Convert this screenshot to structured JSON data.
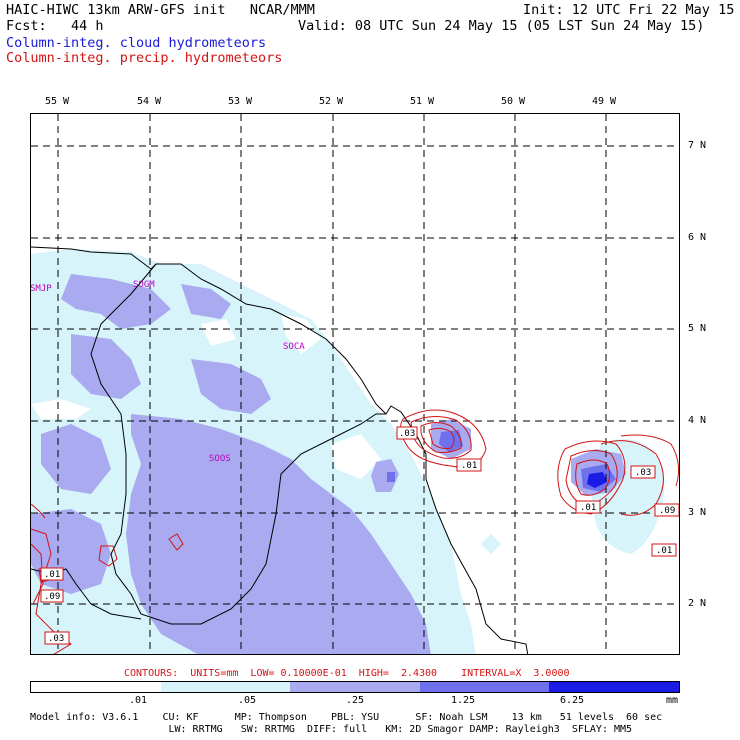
{
  "header": {
    "title": "HAIC-HIWC 13km ARW-GFS init   NCAR/MMM",
    "init": "Init: 12 UTC Fri 22 May 15",
    "fcst": "Fcst:   44 h",
    "valid": "Valid: 08 UTC Sun 24 May 15 (05 LST Sun 24 May 15)",
    "field_cloud": "Column-integ. cloud hydrometeors",
    "field_precip": "Column-integ. precip. hydrometeors"
  },
  "map": {
    "lon_labels": [
      "55 W",
      "54 W",
      "53 W",
      "52 W",
      "51 W",
      "50 W",
      "49 W"
    ],
    "lat_labels": [
      "7 N",
      "6 N",
      "5 N",
      "4 N",
      "3 N",
      "2 N"
    ],
    "station_labels": [
      "SMJP",
      "SOGM",
      "SOCA",
      "SOOS"
    ],
    "contour_labels": [
      ".03",
      ".01",
      ".03",
      ".01",
      ".09",
      ".01",
      ".01",
      ".09",
      ".03"
    ]
  },
  "contours_caption": "CONTOURS:  UNITS=mm  LOW= 0.10000E-01  HIGH=  2.4300    INTERVAL=X  3.0000",
  "colorbar": {
    "labels": [
      ".01",
      ".05",
      ".25",
      "1.25",
      "6.25",
      "mm"
    ],
    "colors": [
      "#ffffff",
      "#d6f4fa",
      "#a9aaf0",
      "#6e70ec",
      "#1b1be6"
    ]
  },
  "model_info": {
    "line1": "Model info: V3.6.1    CU: KF      MP: Thompson    PBL: YSU      SF: Noah LSM    13 km   51 levels  60 sec",
    "line2": "                       LW: RRTMG   SW: RRTMG  DIFF: full   KM: 2D Smagor DAMP: Rayleigh3  SFLAY: MM5"
  }
}
